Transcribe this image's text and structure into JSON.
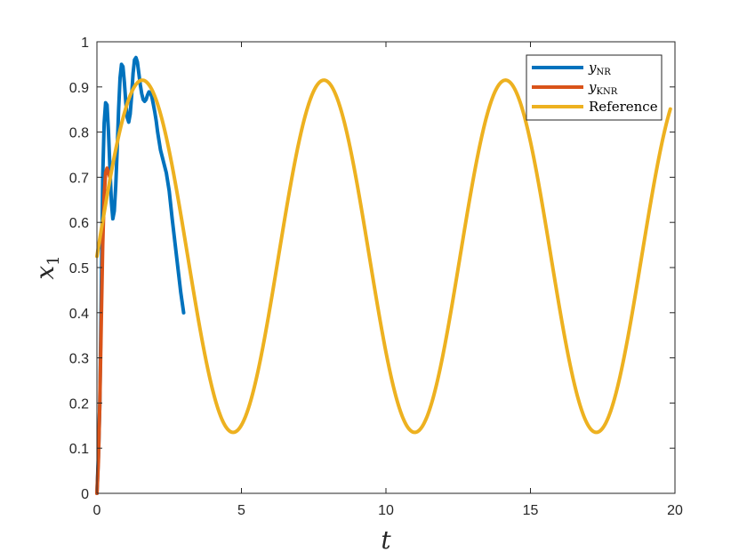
{
  "chart_data": {
    "type": "line",
    "xlabel": "t",
    "ylabel": "x",
    "ylabel_subscript": "1",
    "xlim": [
      0,
      20
    ],
    "ylim": [
      0,
      1
    ],
    "xticks": [
      0,
      5,
      10,
      15,
      20
    ],
    "xtick_labels": [
      "0",
      "5",
      "10",
      "15",
      "20"
    ],
    "yticks": [
      0,
      0.1,
      0.2,
      0.3,
      0.4,
      0.5,
      0.6,
      0.7,
      0.8,
      0.9,
      1
    ],
    "ytick_labels": [
      "0",
      "0.1",
      "0.2",
      "0.3",
      "0.4",
      "0.5",
      "0.6",
      "0.7",
      "0.8",
      "0.9",
      "1"
    ],
    "grid": false,
    "legend_position": "top-right",
    "series": [
      {
        "name": "y_NR",
        "legend_main": "y",
        "legend_sub": "NR",
        "color": "#0072BD",
        "x": [
          0,
          0.05,
          0.1,
          0.15,
          0.2,
          0.25,
          0.3,
          0.35,
          0.4,
          0.45,
          0.5,
          0.55,
          0.6,
          0.65,
          0.7,
          0.75,
          0.8,
          0.85,
          0.9,
          0.95,
          1.0,
          1.05,
          1.1,
          1.15,
          1.2,
          1.25,
          1.3,
          1.35,
          1.4,
          1.45,
          1.5,
          1.55,
          1.6,
          1.65,
          1.7,
          1.75,
          1.8,
          1.85,
          1.9,
          1.95,
          2.0,
          2.05,
          2.1,
          2.15,
          2.2,
          2.3,
          2.4,
          2.5,
          2.6,
          2.7,
          2.8,
          2.9,
          3.0
        ],
        "y": [
          0.0,
          0.08,
          0.2,
          0.45,
          0.7,
          0.82,
          0.865,
          0.86,
          0.8,
          0.72,
          0.645,
          0.608,
          0.625,
          0.68,
          0.76,
          0.85,
          0.92,
          0.95,
          0.945,
          0.91,
          0.865,
          0.832,
          0.822,
          0.84,
          0.88,
          0.93,
          0.96,
          0.965,
          0.955,
          0.93,
          0.905,
          0.885,
          0.872,
          0.868,
          0.872,
          0.882,
          0.889,
          0.888,
          0.878,
          0.862,
          0.845,
          0.825,
          0.8,
          0.78,
          0.76,
          0.735,
          0.71,
          0.67,
          0.61,
          0.555,
          0.5,
          0.445,
          0.4
        ]
      },
      {
        "name": "y_KNR",
        "legend_main": "y",
        "legend_sub": "KNR",
        "color": "#D95319",
        "x": [
          0,
          0.05,
          0.1,
          0.15,
          0.2,
          0.25,
          0.3,
          0.35,
          0.4,
          0.45
        ],
        "y": [
          0.0,
          0.07,
          0.2,
          0.38,
          0.55,
          0.66,
          0.71,
          0.72,
          0.71,
          0.7
        ]
      },
      {
        "name": "Reference",
        "legend_main": "Reference",
        "legend_sub": "",
        "color": "#EDB120",
        "formula": "0.525 + 0.39*sin(t)",
        "x_range": [
          0,
          19.85
        ]
      }
    ]
  }
}
